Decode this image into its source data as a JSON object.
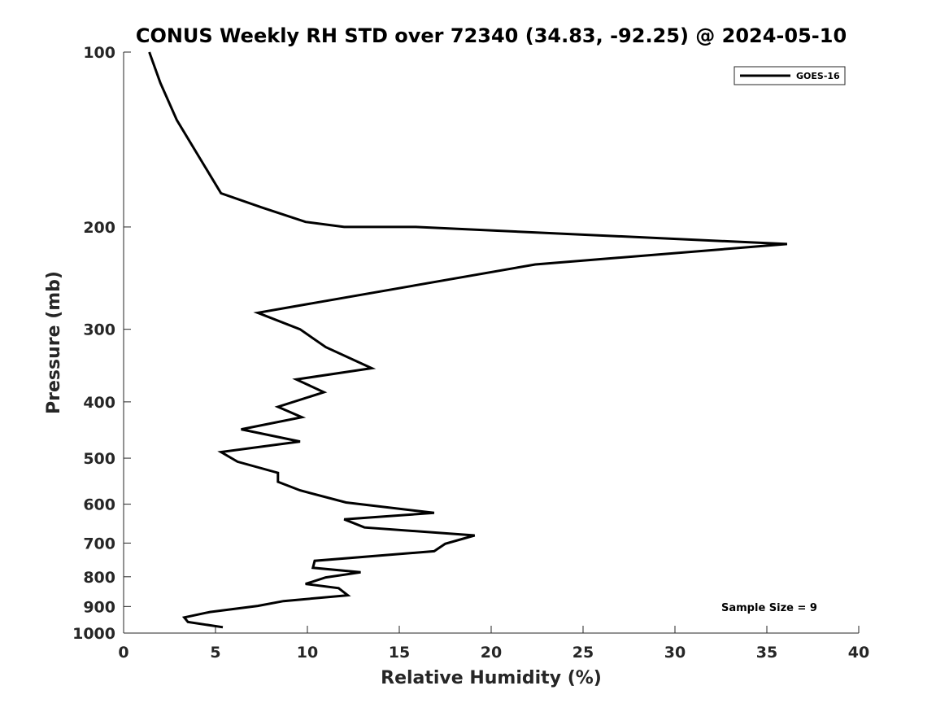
{
  "chart_data": {
    "type": "line",
    "title": "CONUS Weekly RH STD over 72340 (34.83, -92.25) @ 2024-05-10",
    "xlabel": "Relative Humidity (%)",
    "ylabel": "Pressure (mb)",
    "xlim": [
      0,
      40
    ],
    "ylim": [
      100,
      1000
    ],
    "y_scale": "log",
    "y_reversed": true,
    "xticks": [
      0,
      5,
      10,
      15,
      20,
      25,
      30,
      35,
      40
    ],
    "yticks": [
      100,
      200,
      300,
      400,
      500,
      600,
      700,
      800,
      900,
      1000
    ],
    "grid": false,
    "legend_position": "top-right",
    "annotation": "Sample Size = 9",
    "series": [
      {
        "name": "GOES-16",
        "color": "#000000",
        "x": [
          1.4,
          2.0,
          2.9,
          5.3,
          7.5,
          9.9,
          12.0,
          15.9,
          36.1,
          22.4,
          7.3,
          9.6,
          11.0,
          13.5,
          9.4,
          10.9,
          8.4,
          9.7,
          6.4,
          9.6,
          5.3,
          6.2,
          8.4,
          8.4,
          9.6,
          12.1,
          16.9,
          12.0,
          13.1,
          19.1,
          17.5,
          16.9,
          10.4,
          10.3,
          12.9,
          11.0,
          9.9,
          11.7,
          12.2,
          8.7,
          7.3,
          4.7,
          3.3,
          3.5,
          5.4
        ],
        "y": [
          100,
          113,
          131,
          175,
          185,
          196,
          200,
          200,
          214,
          232,
          281,
          300,
          322,
          350,
          366,
          385,
          408,
          425,
          446,
          468,
          488,
          507,
          530,
          549,
          568,
          596,
          621,
          637,
          658,
          679,
          702,
          723,
          751,
          772,
          786,
          802,
          823,
          837,
          861,
          881,
          898,
          920,
          940,
          957,
          977
        ]
      }
    ]
  }
}
